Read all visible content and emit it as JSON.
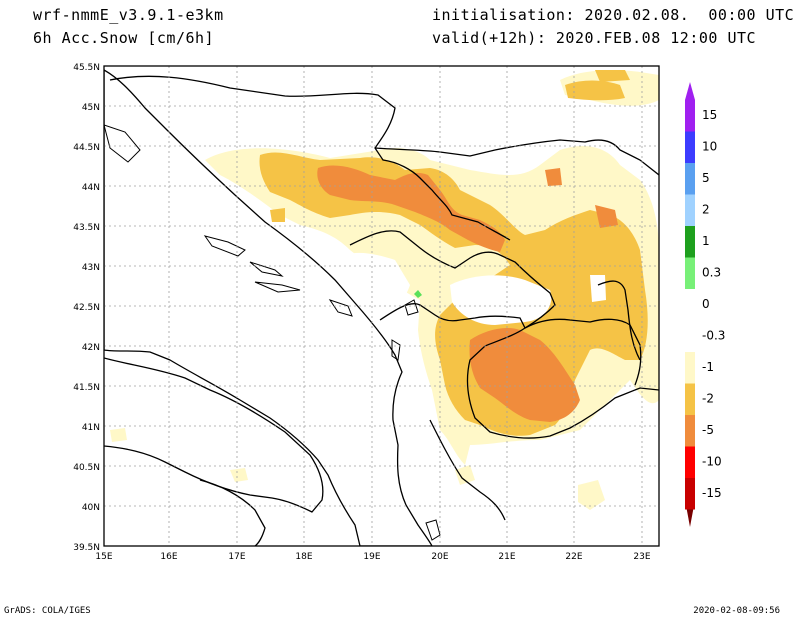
{
  "header": {
    "model": "wrf-nmmE_v3.9.1-e3km",
    "field": "6h Acc.Snow [cm/6h]",
    "init": "initialisation: 2020.02.08.  00:00 UTC",
    "valid": "valid(+12h): 2020.FEB.08 12:00 UTC"
  },
  "map": {
    "lat_labels": [
      "45.5N",
      "45N",
      "44.5N",
      "44N",
      "43.5N",
      "43N",
      "42.5N",
      "42N",
      "41.5N",
      "41N",
      "40.5N",
      "40N",
      "39.5N"
    ],
    "lon_labels": [
      "15E",
      "16E",
      "17E",
      "18E",
      "19E",
      "20E",
      "21E",
      "22E",
      "23E"
    ]
  },
  "colorbar": {
    "levels": [
      {
        "label": "15",
        "color": "#a020f0"
      },
      {
        "label": "10",
        "color": "#3c3cff"
      },
      {
        "label": "5",
        "color": "#5aa0f0"
      },
      {
        "label": "2",
        "color": "#a0d2ff"
      },
      {
        "label": "1",
        "color": "#1ea01e"
      },
      {
        "label": "0.3",
        "color": "#78f078"
      },
      {
        "label": "0",
        "color": "#ffffff"
      },
      {
        "label": "-0.3",
        "color": "#ffffff"
      },
      {
        "label": "-1",
        "color": "#fff8c8"
      },
      {
        "label": "-2",
        "color": "#f5c346"
      },
      {
        "label": "-5",
        "color": "#f08c3c"
      },
      {
        "label": "-10",
        "color": "#ff0000"
      },
      {
        "label": "-15",
        "color": "#c80000"
      }
    ],
    "bottom_color": "#780000"
  },
  "footer": {
    "left": "GrADS: COLA/IGES",
    "right": "2020-02-08-09:56"
  }
}
